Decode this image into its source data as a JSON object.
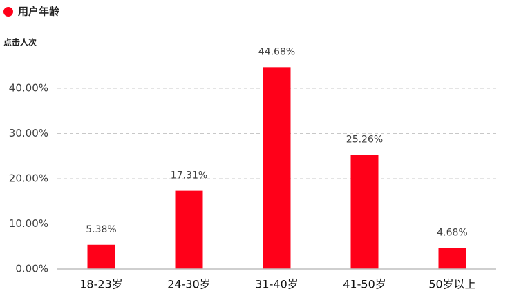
{
  "chart_data": {
    "type": "bar",
    "title": "用户年龄",
    "y_axis_label": "点击人次",
    "categories": [
      "18-23岁",
      "24-30岁",
      "31-40岁",
      "41-50岁",
      "50岁以上"
    ],
    "values": [
      5.38,
      17.31,
      44.68,
      25.26,
      4.68
    ],
    "value_labels": [
      "5.38%",
      "17.31%",
      "44.68%",
      "25.26%",
      "4.68%"
    ],
    "color": "#ff0019",
    "ylim": [
      0,
      50
    ],
    "yticks": [
      {
        "value": 0,
        "label": "0.00%"
      },
      {
        "value": 10,
        "label": "10.00%"
      },
      {
        "value": 20,
        "label": "20.00%"
      },
      {
        "value": 30,
        "label": "30.00%"
      },
      {
        "value": 40,
        "label": "40.00%"
      }
    ],
    "grid": true
  }
}
